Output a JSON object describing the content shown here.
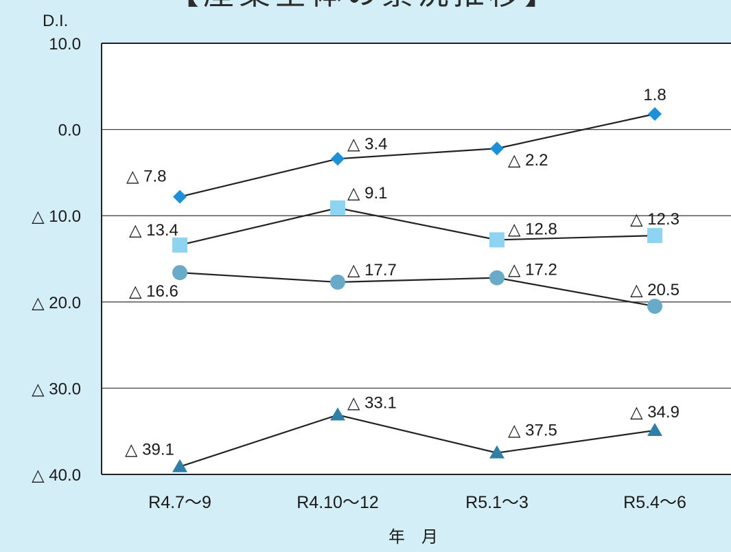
{
  "title": "【産業全体の景況推移】",
  "chart_data": {
    "type": "line",
    "title": "【産業全体の景況推移】",
    "ylabel": "D.I.",
    "xlabel": "年　月",
    "ylim": [
      -40,
      10
    ],
    "yticks": [
      10,
      0,
      -10,
      -20,
      -30,
      -40
    ],
    "ytick_labels": [
      "10.0",
      "0.0",
      "△ 10.0",
      "△ 20.0",
      "△ 30.0",
      "△ 40.0"
    ],
    "categories": [
      "R4.7～9",
      "R4.10～12",
      "R5.1～3",
      "R5.4～6"
    ],
    "grid": true,
    "legend": "none",
    "series": [
      {
        "marker": "diamond",
        "color": "#1e90d8",
        "values": [
          -7.8,
          -3.4,
          -2.2,
          1.8
        ],
        "labels": [
          "△ 7.8",
          "△ 3.4",
          "△ 2.2",
          "1.8"
        ]
      },
      {
        "marker": "square",
        "color": "#8fd3f2",
        "values": [
          -13.4,
          -9.1,
          -12.8,
          -12.3
        ],
        "labels": [
          "△ 13.4",
          "△ 9.1",
          "△ 12.8",
          "△ 12.3"
        ]
      },
      {
        "marker": "circle",
        "color": "#6aaac9",
        "values": [
          -16.6,
          -17.7,
          -17.2,
          -20.5
        ],
        "labels": [
          "△ 16.6",
          "△ 17.7",
          "△ 17.2",
          "△ 20.5"
        ]
      },
      {
        "marker": "triangle",
        "color": "#2f7fa6",
        "values": [
          -39.1,
          -33.1,
          -37.5,
          -34.9
        ],
        "labels": [
          "△ 39.1",
          "△ 33.1",
          "△ 37.5",
          "△ 34.9"
        ]
      }
    ]
  }
}
